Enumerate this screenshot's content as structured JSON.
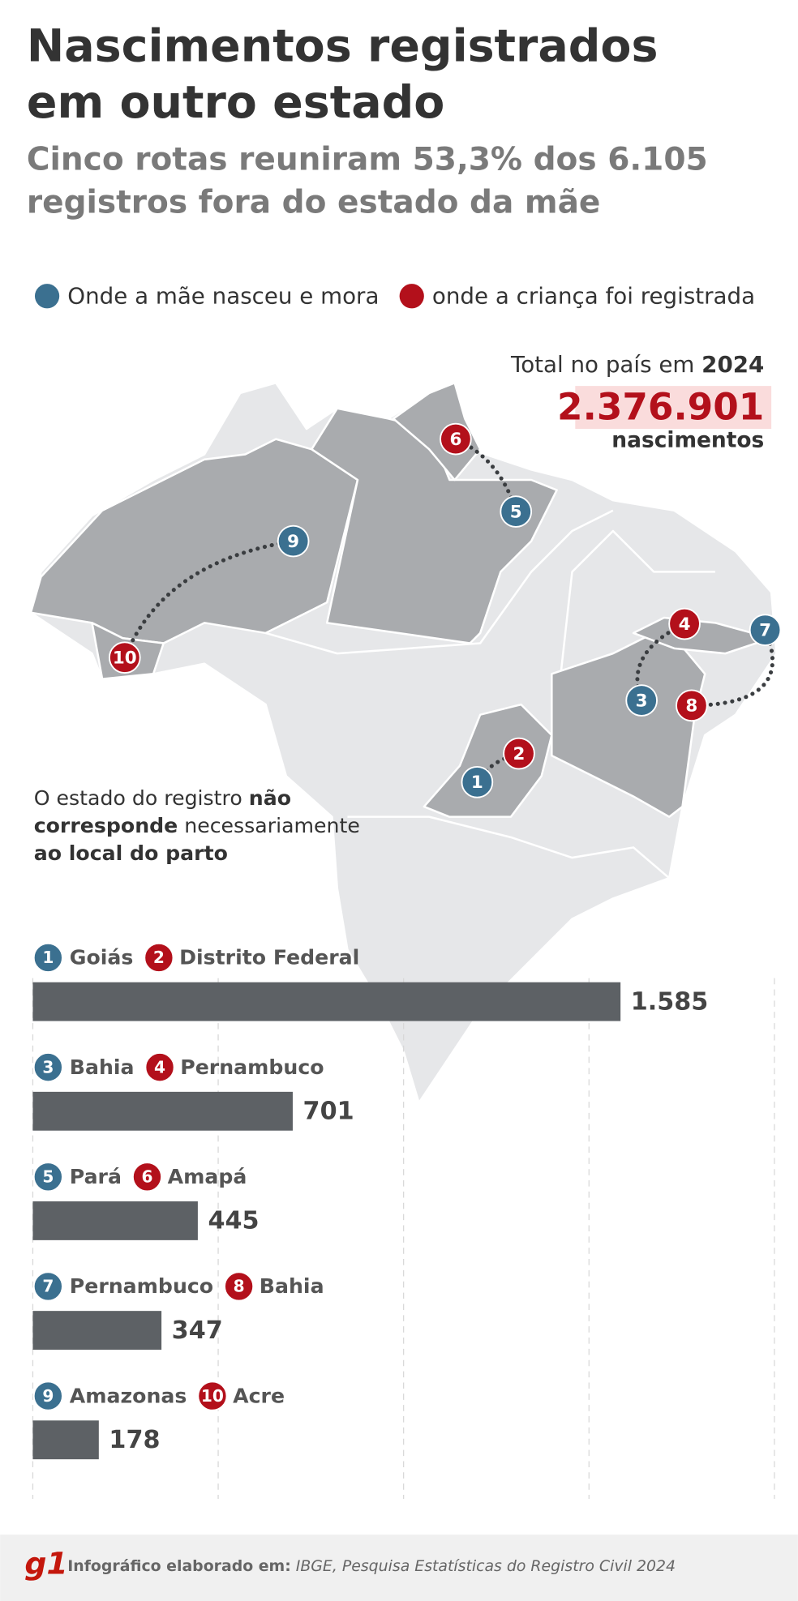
{
  "chart_data": {
    "type": "bar",
    "title": [
      "Nascimentos registrados",
      "em outro estado"
    ],
    "subtitle": [
      "Cinco rotas reuniram 53,3% dos 6.105",
      "registros fora do estado da mãe"
    ],
    "legend": [
      {
        "name": "Onde a mãe nasceu e mora",
        "color": "#3b7090"
      },
      {
        "name": "onde a criança foi registrada",
        "color": "#b3101b"
      }
    ],
    "total": {
      "prefix": "Total no país em",
      "year": "2024",
      "value": "2.376.901",
      "unit": "nascimentos"
    },
    "note": [
      {
        "text": "O estado do registro ",
        "bold": false
      },
      {
        "text": "não",
        "bold": true
      },
      {
        "text": "corresponde",
        "bold": true
      },
      {
        "text": " necessariamente",
        "bold": false
      },
      {
        "text": "ao local do parto",
        "bold": true
      }
    ],
    "routes": [
      {
        "origin": {
          "n": "1",
          "name": "Goiás"
        },
        "destination": {
          "n": "2",
          "name": "Distrito Federal"
        }
      },
      {
        "origin": {
          "n": "3",
          "name": "Bahia"
        },
        "destination": {
          "n": "4",
          "name": "Pernambuco"
        }
      },
      {
        "origin": {
          "n": "5",
          "name": "Pará"
        },
        "destination": {
          "n": "6",
          "name": "Amapá"
        }
      },
      {
        "origin": {
          "n": "7",
          "name": "Pernambuco"
        },
        "destination": {
          "n": "8",
          "name": "Bahia"
        }
      },
      {
        "origin": {
          "n": "9",
          "name": "Amazonas"
        },
        "destination": {
          "n": "10",
          "name": "Acre"
        }
      }
    ],
    "values": [
      1585,
      701,
      445,
      347,
      178
    ],
    "value_labels": [
      "1.585",
      "701",
      "445",
      "347",
      "178"
    ],
    "color": "#5d6165",
    "xlim": [
      0,
      2000
    ],
    "xticks": [
      0,
      500,
      1000,
      1500,
      2000
    ],
    "grid": true,
    "source": {
      "brand": "g1",
      "label": "Infográfico elaborado em:",
      "text": "IBGE, Pesquisa Estatísticas do Registro Civil 2024"
    }
  }
}
